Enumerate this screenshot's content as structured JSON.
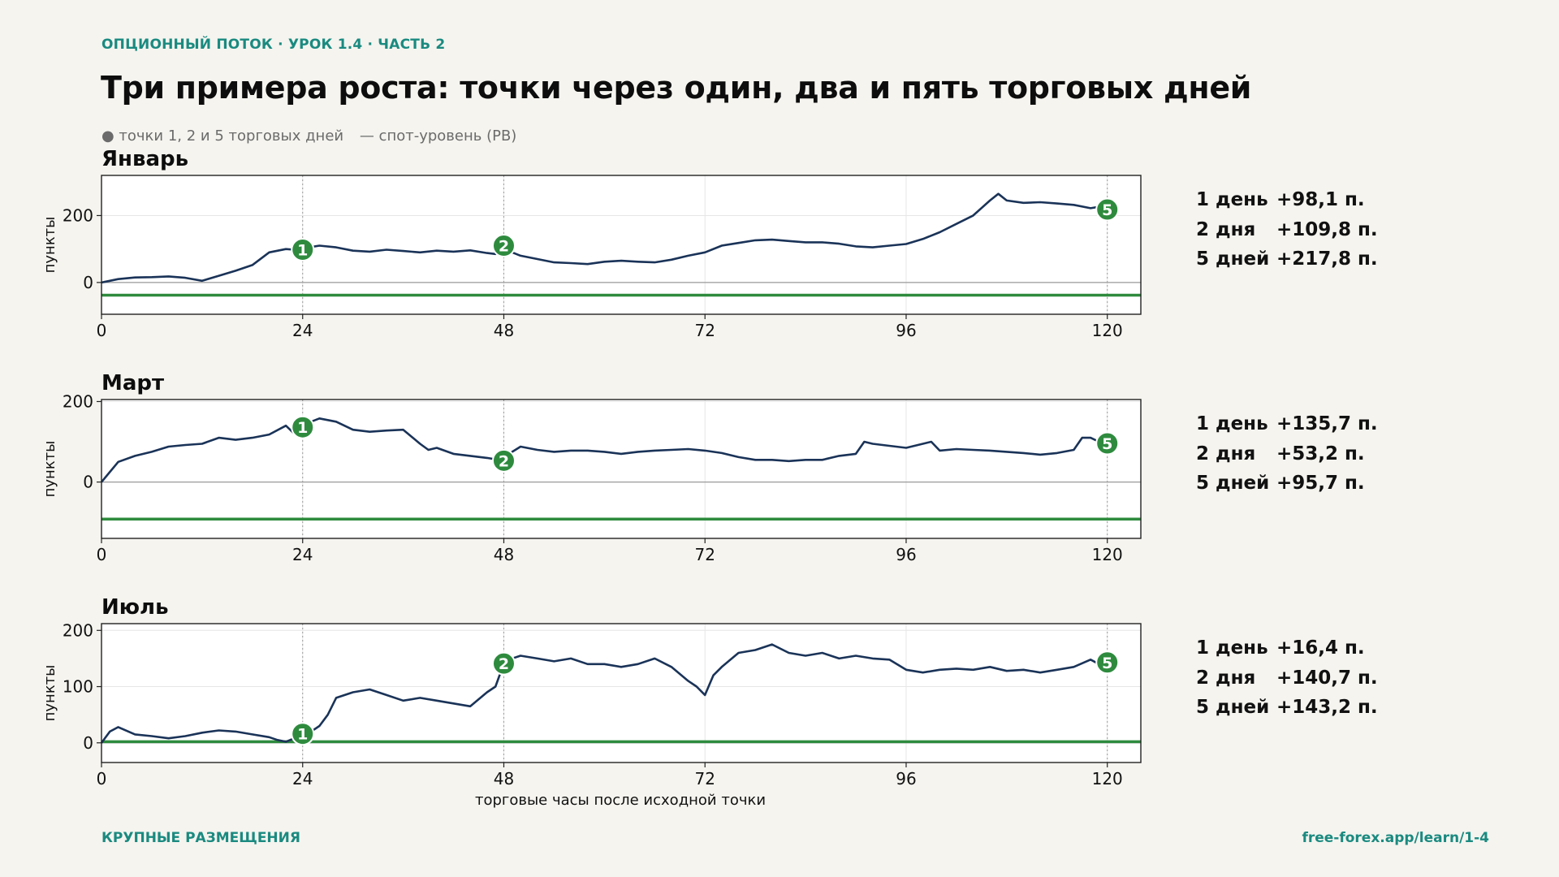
{
  "header": {
    "kicker": "ОПЦИОННЫЙ ПОТОК · УРОК 1.4 · ЧАСТЬ 2",
    "title": "Три примера роста: точки через один, два и пять торговых дней",
    "legend_points": "● точки 1, 2 и 5 торговых дней",
    "legend_spot": "— спот-уровень (PB)"
  },
  "footer": {
    "left": "КРУПНЫЕ РАЗМЕЩЕНИЯ",
    "right": "free-forex.app/learn/1-4"
  },
  "colors": {
    "line": "#1a3358",
    "spot": "#2e8b3e",
    "marker": "#2e8b3e",
    "zero": "#9a9a9a",
    "grid": "#e6e6e6",
    "accent": "#1a8a80"
  },
  "panels": [
    {
      "title": "Январь",
      "stats": [
        {
          "label": "1 день",
          "value": "+98,1 п."
        },
        {
          "label": "2 дня",
          "value": "+109,8 п."
        },
        {
          "label": "5 дней",
          "value": "+217,8 п."
        }
      ]
    },
    {
      "title": "Март",
      "stats": [
        {
          "label": "1 день",
          "value": "+135,7 п."
        },
        {
          "label": "2 дня",
          "value": "+53,2 п."
        },
        {
          "label": "5 дней",
          "value": "+95,7 п."
        }
      ]
    },
    {
      "title": "Июль",
      "stats": [
        {
          "label": "1 день",
          "value": "+16,4 п."
        },
        {
          "label": "2 дня",
          "value": "+140,7 п."
        },
        {
          "label": "5 дней",
          "value": "+143,2 п."
        }
      ]
    }
  ],
  "chart_data": [
    {
      "type": "line",
      "title": "Январь",
      "ylabel": "пункты",
      "xlabel": "",
      "xlim": [
        0,
        124
      ],
      "ylim": [
        -95,
        320
      ],
      "xticks": [
        0,
        24,
        48,
        72,
        96,
        120
      ],
      "yticks": [
        0,
        200
      ],
      "vlines": [
        24,
        48,
        120
      ],
      "spot_level": -38,
      "series": [
        {
          "x": [
            0,
            2,
            4,
            6,
            8,
            10,
            12,
            14,
            16,
            18,
            20,
            22,
            23,
            24,
            25,
            26,
            28,
            30,
            32,
            34,
            36,
            38,
            40,
            42,
            44,
            46,
            47,
            48,
            49,
            50,
            52,
            54,
            56,
            58,
            60,
            62,
            64,
            66,
            68,
            70,
            72,
            74,
            76,
            78,
            80,
            82,
            84,
            86,
            88,
            90,
            92,
            94,
            96,
            98,
            100,
            102,
            104,
            106,
            107,
            108,
            110,
            112,
            114,
            116,
            118,
            119,
            120
          ],
          "y": [
            0,
            10,
            15,
            16,
            18,
            14,
            5,
            20,
            35,
            52,
            90,
            100,
            98,
            98,
            106,
            110,
            105,
            95,
            92,
            98,
            94,
            90,
            95,
            92,
            96,
            88,
            85,
            110,
            90,
            80,
            70,
            60,
            58,
            55,
            62,
            65,
            62,
            60,
            68,
            80,
            90,
            110,
            118,
            126,
            128,
            124,
            120,
            120,
            116,
            108,
            105,
            110,
            115,
            130,
            150,
            175,
            200,
            245,
            265,
            245,
            238,
            240,
            236,
            232,
            222,
            226,
            218
          ]
        }
      ],
      "markers": [
        {
          "x": 24,
          "y": 98,
          "label": "1"
        },
        {
          "x": 48,
          "y": 110,
          "label": "2"
        },
        {
          "x": 120,
          "y": 218,
          "label": "5"
        }
      ]
    },
    {
      "type": "line",
      "title": "Март",
      "ylabel": "пункты",
      "xlabel": "",
      "xlim": [
        0,
        124
      ],
      "ylim": [
        -140,
        205
      ],
      "xticks": [
        0,
        24,
        48,
        72,
        96,
        120
      ],
      "yticks": [
        0,
        200
      ],
      "vlines": [
        24,
        48,
        120
      ],
      "spot_level": -92,
      "series": [
        {
          "x": [
            0,
            2,
            4,
            6,
            8,
            10,
            12,
            14,
            16,
            18,
            20,
            22,
            23,
            24,
            25,
            26,
            28,
            30,
            32,
            34,
            36,
            38,
            39,
            40,
            42,
            44,
            46,
            48,
            49,
            50,
            52,
            54,
            56,
            58,
            60,
            62,
            64,
            66,
            68,
            70,
            72,
            74,
            76,
            78,
            80,
            82,
            84,
            86,
            88,
            90,
            91,
            92,
            94,
            96,
            98,
            99,
            100,
            102,
            104,
            106,
            108,
            110,
            112,
            114,
            116,
            117,
            118,
            119,
            120
          ],
          "y": [
            0,
            50,
            65,
            75,
            88,
            92,
            95,
            110,
            105,
            110,
            118,
            140,
            120,
            136,
            150,
            158,
            150,
            130,
            125,
            128,
            130,
            95,
            80,
            85,
            70,
            65,
            60,
            53,
            75,
            88,
            80,
            75,
            78,
            78,
            75,
            70,
            75,
            78,
            80,
            82,
            78,
            72,
            62,
            55,
            55,
            52,
            55,
            55,
            65,
            70,
            100,
            95,
            90,
            85,
            95,
            100,
            78,
            82,
            80,
            78,
            75,
            72,
            68,
            72,
            80,
            110,
            110,
            100,
            96
          ]
        }
      ],
      "markers": [
        {
          "x": 24,
          "y": 136,
          "label": "1"
        },
        {
          "x": 48,
          "y": 53,
          "label": "2"
        },
        {
          "x": 120,
          "y": 96,
          "label": "5"
        }
      ]
    },
    {
      "type": "line",
      "title": "Июль",
      "ylabel": "пункты",
      "xlabel": "торговые часы после исходной точки",
      "xlim": [
        0,
        124
      ],
      "ylim": [
        -35,
        212
      ],
      "xticks": [
        0,
        24,
        48,
        72,
        96,
        120
      ],
      "yticks": [
        0,
        100,
        200
      ],
      "vlines": [
        24,
        48,
        120
      ],
      "spot_level": 2,
      "series": [
        {
          "x": [
            0,
            1,
            2,
            4,
            6,
            8,
            10,
            12,
            14,
            16,
            18,
            20,
            21,
            22,
            23,
            24,
            25,
            26,
            27,
            28,
            30,
            32,
            34,
            36,
            38,
            40,
            42,
            44,
            46,
            47,
            48,
            49,
            50,
            52,
            54,
            56,
            58,
            60,
            62,
            64,
            66,
            68,
            70,
            71,
            72,
            73,
            74,
            76,
            78,
            80,
            82,
            84,
            86,
            88,
            90,
            92,
            94,
            96,
            98,
            100,
            102,
            104,
            106,
            108,
            110,
            112,
            114,
            116,
            118,
            119,
            120
          ],
          "y": [
            0,
            20,
            28,
            15,
            12,
            8,
            12,
            18,
            22,
            20,
            15,
            10,
            5,
            2,
            8,
            16,
            20,
            30,
            50,
            80,
            90,
            95,
            85,
            75,
            80,
            75,
            70,
            65,
            90,
            100,
            141,
            150,
            155,
            150,
            145,
            150,
            140,
            140,
            135,
            140,
            150,
            135,
            110,
            100,
            85,
            120,
            135,
            160,
            165,
            175,
            160,
            155,
            160,
            150,
            155,
            150,
            148,
            130,
            125,
            130,
            132,
            130,
            135,
            128,
            130,
            125,
            130,
            135,
            148,
            140,
            143
          ]
        }
      ],
      "markers": [
        {
          "x": 24,
          "y": 16,
          "label": "1"
        },
        {
          "x": 48,
          "y": 141,
          "label": "2"
        },
        {
          "x": 120,
          "y": 143,
          "label": "5"
        }
      ]
    }
  ]
}
